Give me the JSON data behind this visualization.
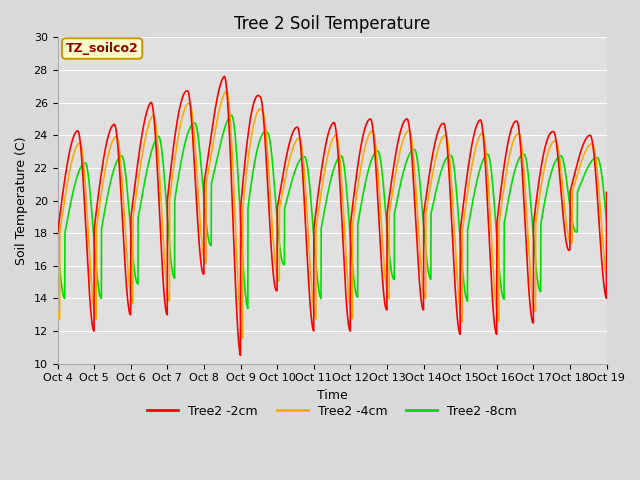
{
  "title": "Tree 2 Soil Temperature",
  "xlabel": "Time",
  "ylabel": "Soil Temperature (C)",
  "ylim": [
    10,
    30
  ],
  "xlim": [
    0,
    15
  ],
  "fig_bg_color": "#d9d9d9",
  "plot_bg_color": "#e0e0e0",
  "annotation_text": "TZ_soilco2",
  "annotation_bg": "#ffffcc",
  "annotation_border": "#cc9900",
  "annotation_text_color": "#990000",
  "xtick_labels": [
    "Oct 4",
    "Oct 5",
    "Oct 6",
    "Oct 7",
    "Oct 8",
    "Oct 9",
    "Oct 10",
    "Oct 11",
    "Oct 12",
    "Oct 13",
    "Oct 14",
    "Oct 15",
    "Oct 16",
    "Oct 17",
    "Oct 18",
    "Oct 19"
  ],
  "ytick_values": [
    10,
    12,
    14,
    16,
    18,
    20,
    22,
    24,
    26,
    28,
    30
  ],
  "legend_labels": [
    "Tree2 -2cm",
    "Tree2 -4cm",
    "Tree2 -8cm"
  ],
  "line_colors": [
    "#ff0000",
    "#ffaa00",
    "#00dd00"
  ],
  "line_width": 1.2,
  "grid_color": "#ffffff",
  "title_fontsize": 12,
  "label_fontsize": 9,
  "tick_fontsize": 8
}
